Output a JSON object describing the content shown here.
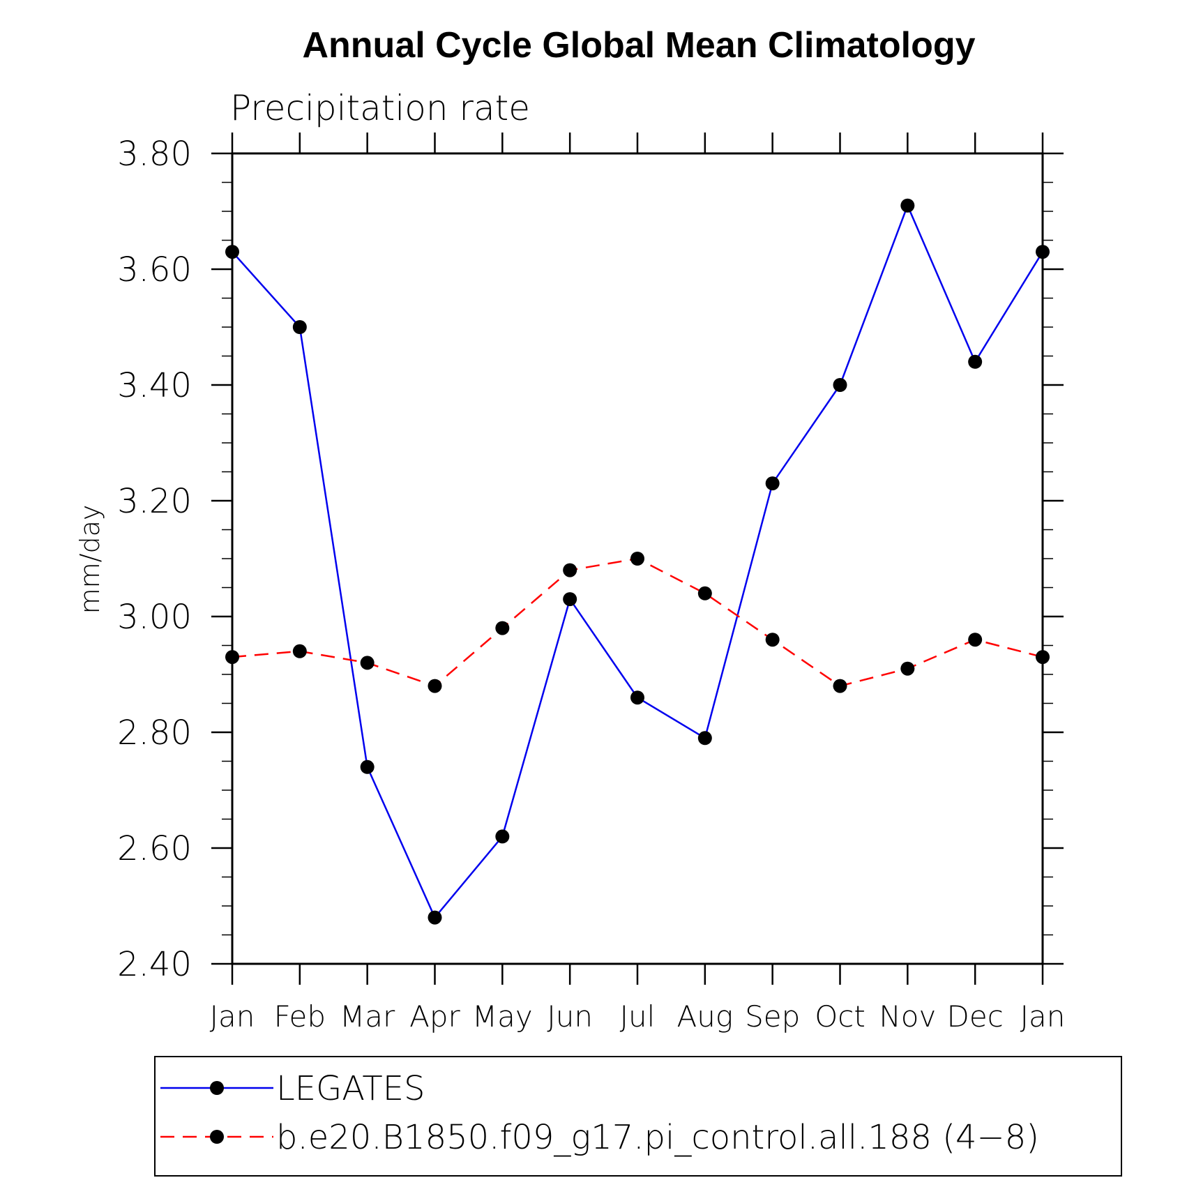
{
  "chart_data": {
    "type": "line",
    "title": "Annual Cycle Global Mean Climatology",
    "subtitle": "Precipitation rate",
    "ylabel": "mm/day",
    "xlabel": "",
    "categories": [
      "Jan",
      "Feb",
      "Mar",
      "Apr",
      "May",
      "Jun",
      "Jul",
      "Aug",
      "Sep",
      "Oct",
      "Nov",
      "Dec",
      "Jan"
    ],
    "ylim": [
      2.4,
      3.8
    ],
    "yticks": [
      "2.40",
      "2.60",
      "2.80",
      "3.00",
      "3.20",
      "3.40",
      "3.60",
      "3.80"
    ],
    "grid": false,
    "legend_position": "bottom",
    "series": [
      {
        "name": "LEGATES",
        "color": "#0000ee",
        "line_style": "solid",
        "marker": "filled-circle",
        "values": [
          3.63,
          3.5,
          2.74,
          2.48,
          2.62,
          3.03,
          2.86,
          2.79,
          3.23,
          3.4,
          3.71,
          3.44,
          3.63
        ]
      },
      {
        "name": "b.e20.B1850.f09_g17.pi_control.all.188 (4−8)",
        "color": "#ff0000",
        "line_style": "dashed",
        "marker": "filled-circle",
        "values": [
          2.93,
          2.94,
          2.92,
          2.88,
          2.98,
          3.08,
          3.1,
          3.04,
          2.96,
          2.88,
          2.91,
          2.96,
          2.93
        ]
      }
    ]
  }
}
